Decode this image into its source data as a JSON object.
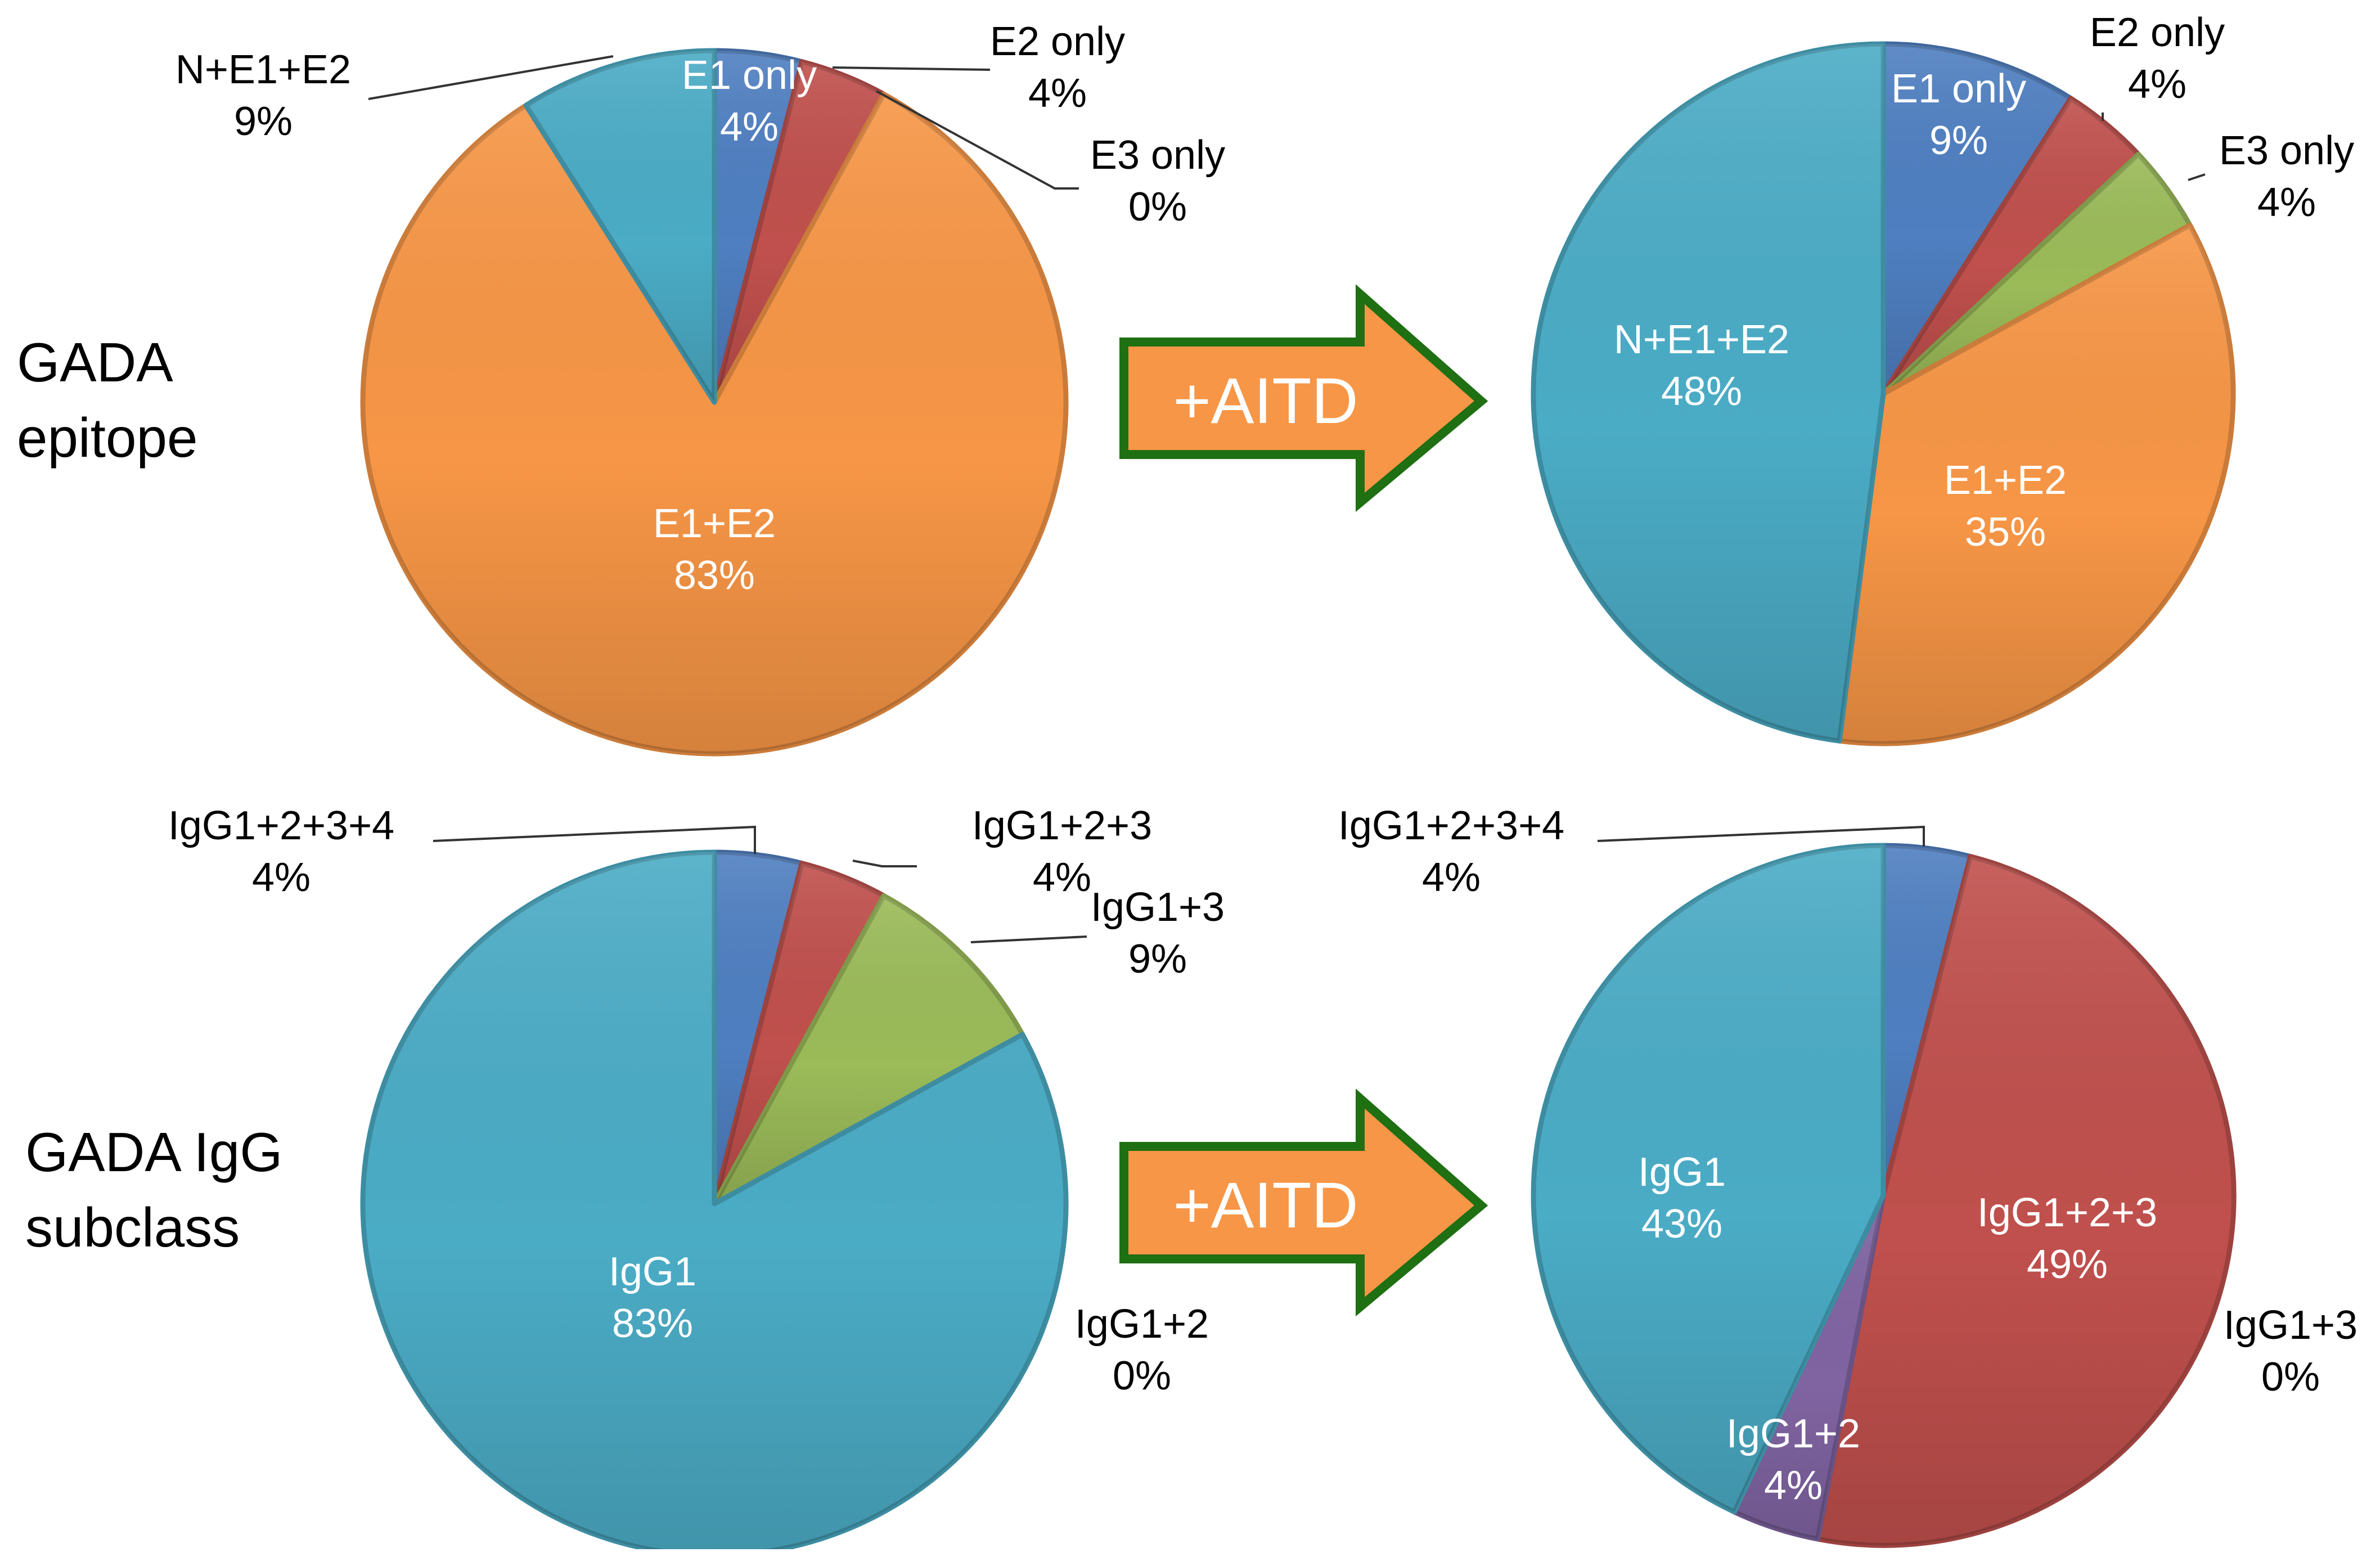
{
  "row_labels": {
    "epitope": [
      "GADA",
      "epitope"
    ],
    "subclass": [
      "GADA IgG",
      "subclass"
    ]
  },
  "arrow_label": "+AITD",
  "colors": {
    "blue": "#4f7fc1",
    "red": "#c0504d",
    "green": "#9bbb59",
    "orange": "#f79646",
    "teal": "#4bacc6",
    "purple": "#8064a2",
    "arrow_fill": "#f79646",
    "arrow_stroke": "#1f6f13"
  },
  "chart_data": [
    {
      "type": "pie",
      "title": "GADA epitope",
      "slices": [
        {
          "name": "E1 only",
          "value": 4,
          "color": "#4f7fc1"
        },
        {
          "name": "E2 only",
          "value": 4,
          "color": "#c0504d"
        },
        {
          "name": "E3 only",
          "value": 0,
          "color": "#9bbb59"
        },
        {
          "name": "E1+E2",
          "value": 83,
          "color": "#f79646"
        },
        {
          "name": "N+E1+E2",
          "value": 9,
          "color": "#4bacc6"
        }
      ]
    },
    {
      "type": "pie",
      "title": "GADA epitope +AITD",
      "slices": [
        {
          "name": "E1 only",
          "value": 9,
          "color": "#4f7fc1"
        },
        {
          "name": "E2 only",
          "value": 4,
          "color": "#c0504d"
        },
        {
          "name": "E3 only",
          "value": 4,
          "color": "#9bbb59"
        },
        {
          "name": "E1+E2",
          "value": 35,
          "color": "#f79646"
        },
        {
          "name": "N+E1+E2",
          "value": 48,
          "color": "#4bacc6"
        }
      ]
    },
    {
      "type": "pie",
      "title": "GADA IgG subclass",
      "slices": [
        {
          "name": "IgG1+2+3+4",
          "value": 4,
          "color": "#4f7fc1"
        },
        {
          "name": "IgG1+2+3",
          "value": 4,
          "color": "#c0504d"
        },
        {
          "name": "IgG1+3",
          "value": 9,
          "color": "#9bbb59"
        },
        {
          "name": "IgG1+2",
          "value": 0,
          "color": "#8064a2"
        },
        {
          "name": "IgG1",
          "value": 83,
          "color": "#4bacc6"
        }
      ]
    },
    {
      "type": "pie",
      "title": "GADA IgG subclass +AITD",
      "slices": [
        {
          "name": "IgG1+2+3+4",
          "value": 4,
          "color": "#4f7fc1"
        },
        {
          "name": "IgG1+2+3",
          "value": 49,
          "color": "#c0504d"
        },
        {
          "name": "IgG1+3",
          "value": 0,
          "color": "#9bbb59"
        },
        {
          "name": "IgG1+2",
          "value": 4,
          "color": "#8064a2"
        },
        {
          "name": "IgG1",
          "value": 43,
          "color": "#4bacc6"
        }
      ]
    }
  ]
}
